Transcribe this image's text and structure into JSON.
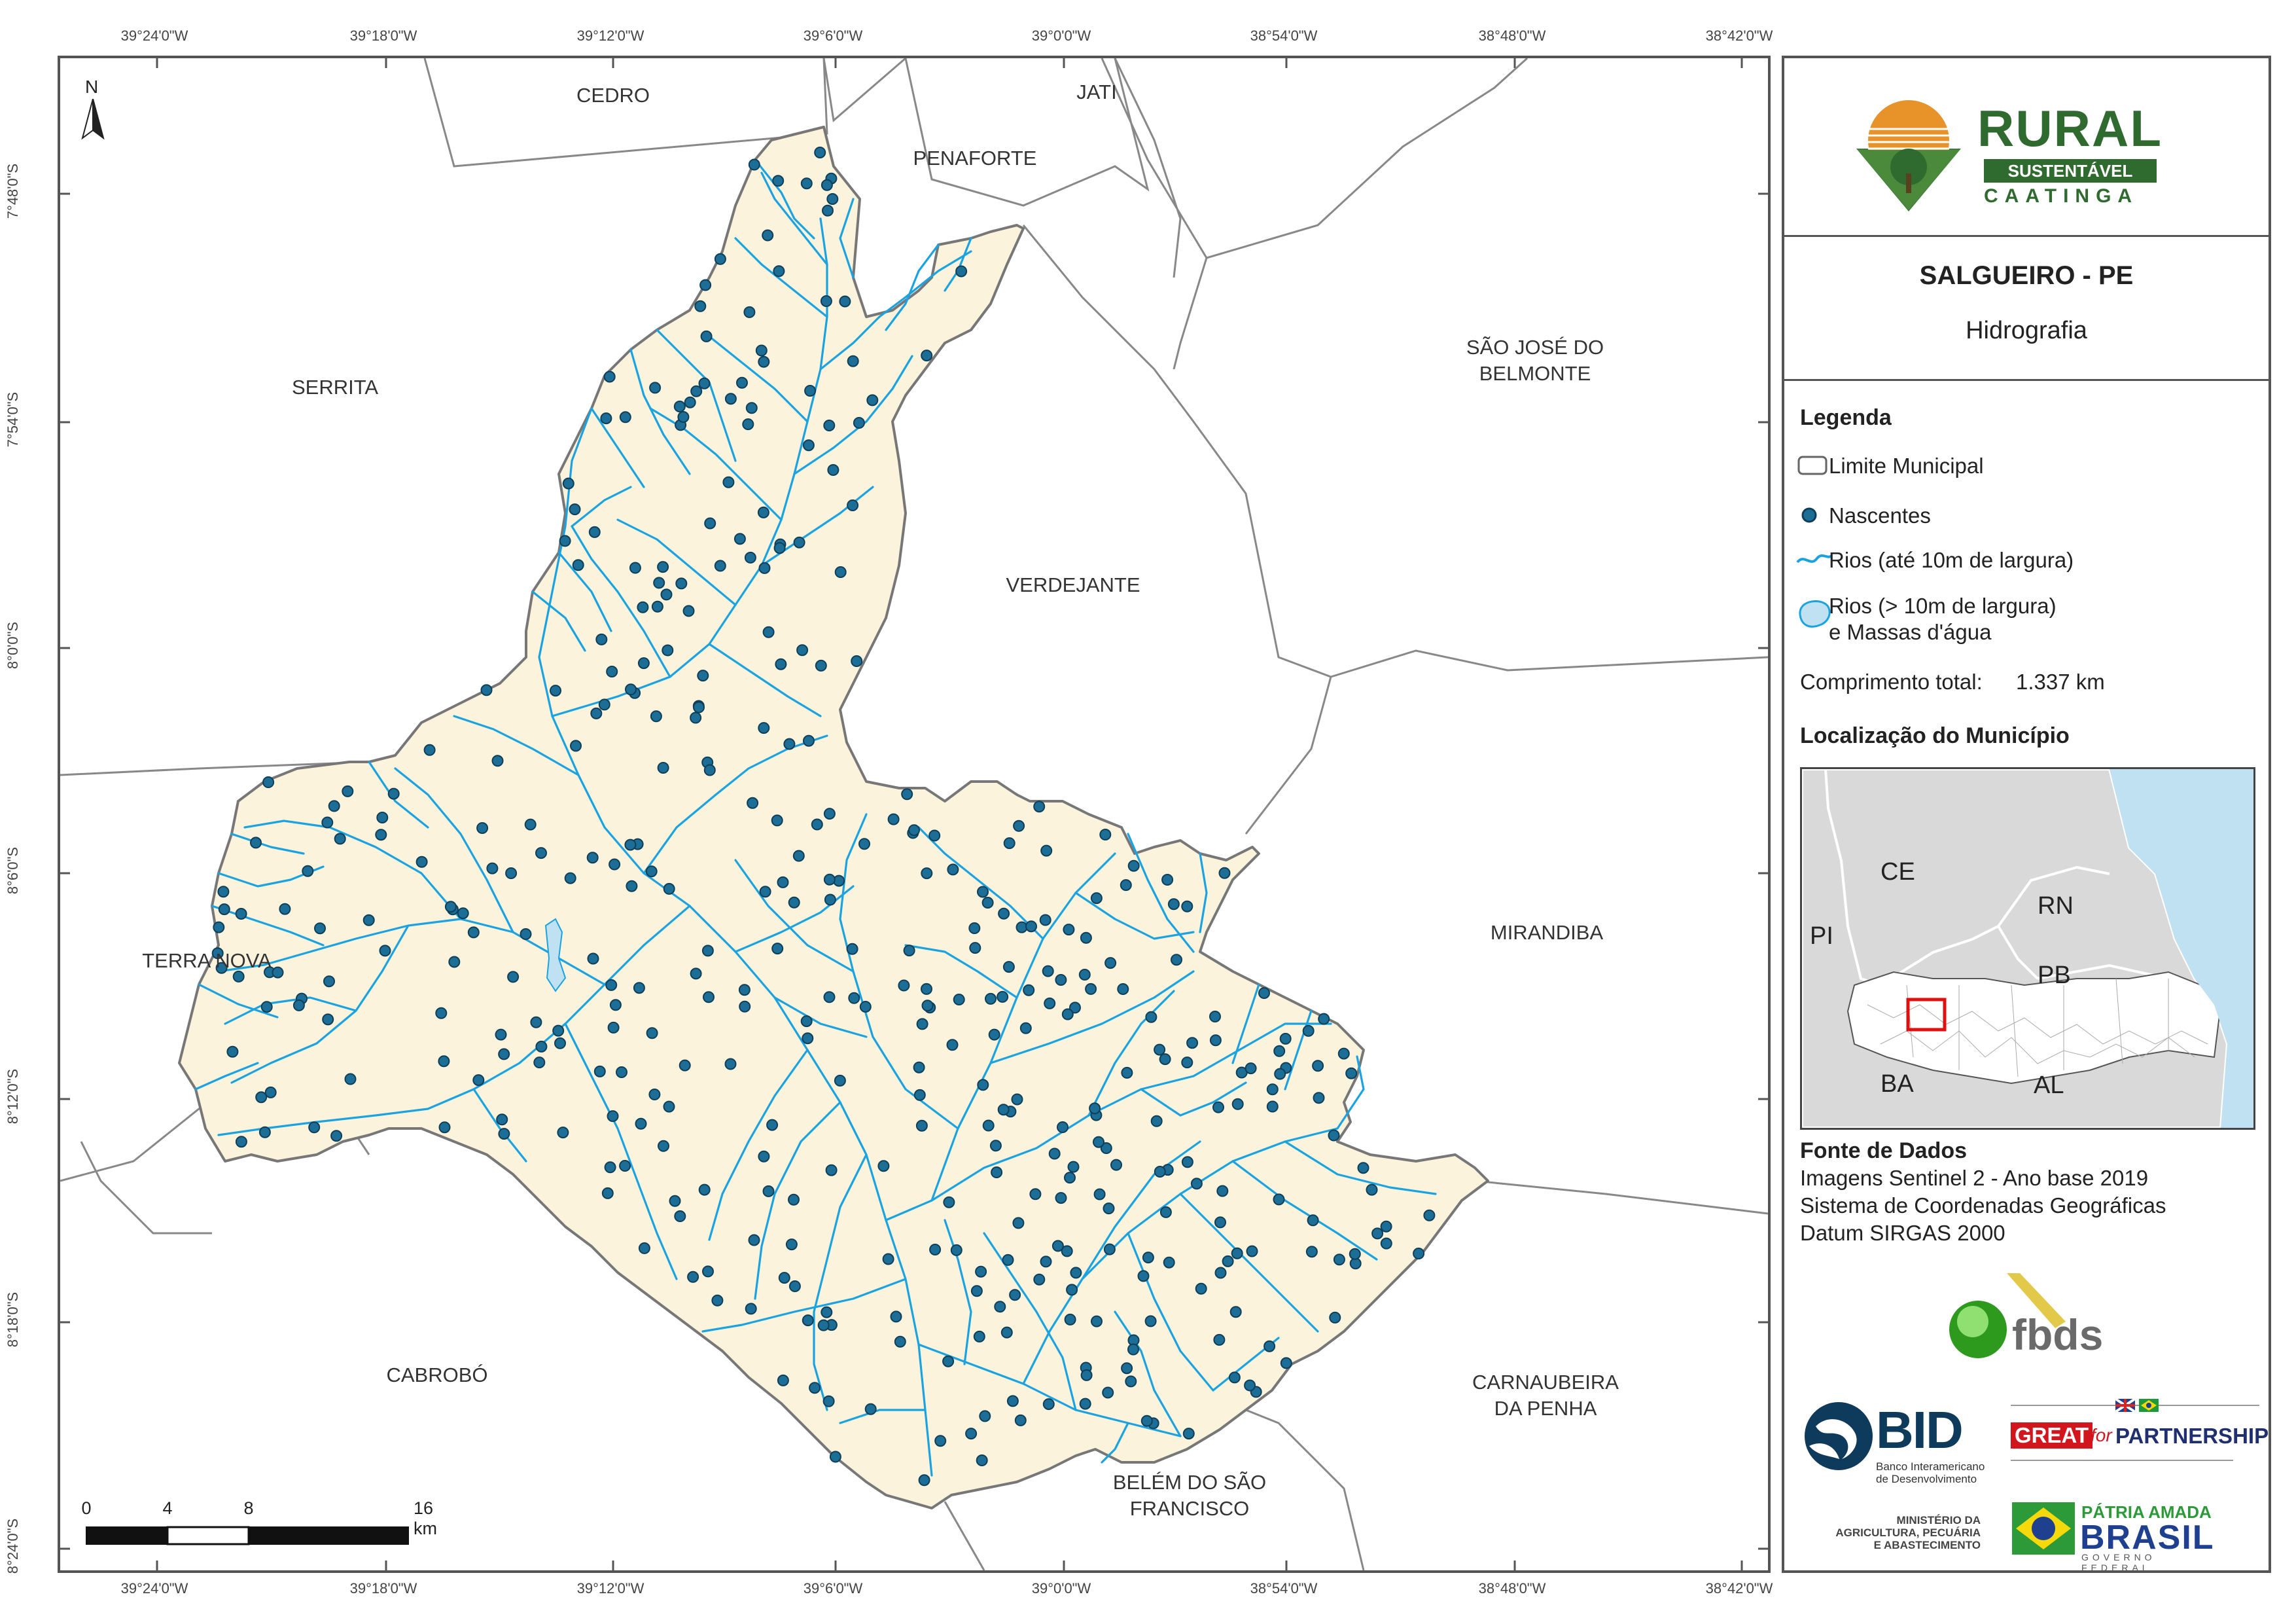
{
  "coords": {
    "lon_labels": [
      "39°24'0\"W",
      "39°18'0\"W",
      "39°12'0\"W",
      "39°6'0\"W",
      "39°0'0\"W",
      "38°54'0\"W",
      "38°48'0\"W",
      "38°42'0\"W"
    ],
    "lat_labels": [
      "7°48'0\"S",
      "7°54'0\"S",
      "8°0'0\"S",
      "8°6'0\"S",
      "8°12'0\"S",
      "8°18'0\"S",
      "8°24'0\"S"
    ]
  },
  "neighbors": {
    "cedro": "CEDRO",
    "jati": "JATI",
    "penaforte": "PENAFORTE",
    "serrita": "SERRITA",
    "sao_jose_1": "SÃO JOSÉ DO",
    "sao_jose_2": "BELMONTE",
    "verdejante": "VERDEJANTE",
    "terra_nova": "TERRA NOVA",
    "mirandiba": "MIRANDIBA",
    "cabrobo": "CABROBÓ",
    "carnaubeira_1": "CARNAUBEIRA",
    "carnaubeira_2": "DA PENHA",
    "belem_1": "BELÉM DO SÃO",
    "belem_2": "FRANCISCO"
  },
  "north_arrow": "N",
  "scale_bar": {
    "labels": [
      "0",
      "4",
      "8",
      "16 km"
    ]
  },
  "logo": {
    "rural": "RURAL",
    "sustentavel": "SUSTENTÁVEL",
    "caatinga": "CAATINGA"
  },
  "title": {
    "main": "SALGUEIRO - PE",
    "subtitle": "Hidrografia"
  },
  "legend": {
    "heading": "Legenda",
    "items": [
      {
        "label": "Limite Municipal"
      },
      {
        "label": "Nascentes"
      },
      {
        "label": "Rios (até 10m de largura)"
      },
      {
        "label": "Rios (> 10m de largura)",
        "label2": "e Massas d'água"
      }
    ],
    "length_label": "Comprimento total:",
    "length_value": "1.337 km"
  },
  "location": {
    "heading": "Localização do Município",
    "states": [
      "CE",
      "RN",
      "PB",
      "PI",
      "BA",
      "AL"
    ]
  },
  "sources": {
    "heading": "Fonte de Dados",
    "lines": [
      "Imagens Sentinel 2 - Ano base 2019",
      "Sistema de Coordenadas Geográficas",
      "Datum SIRGAS 2000"
    ]
  },
  "partners": {
    "fbds": "fbds",
    "bid": "BID",
    "bid_sub_1": "Banco Interamericano",
    "bid_sub_2": "de Desenvolvimento",
    "great": "GREAT",
    "for_word": "for",
    "partnership": "PARTNERSHIP",
    "ministerio_1": "MINISTÉRIO DA",
    "ministerio_2": "AGRICULTURA, PECUÁRIA",
    "ministerio_3": "E ABASTECIMENTO",
    "patria": "PÁTRIA AMADA",
    "brasil": "BRASIL",
    "governo": "GOVERNO FEDERAL"
  },
  "colors": {
    "municipality_fill": "#fbf3dc",
    "river": "#1aa3e0",
    "spring": "#1d6e96",
    "border": "#777777",
    "ocean": "#bfe1f2",
    "logo_green": "#2f6b2f"
  }
}
